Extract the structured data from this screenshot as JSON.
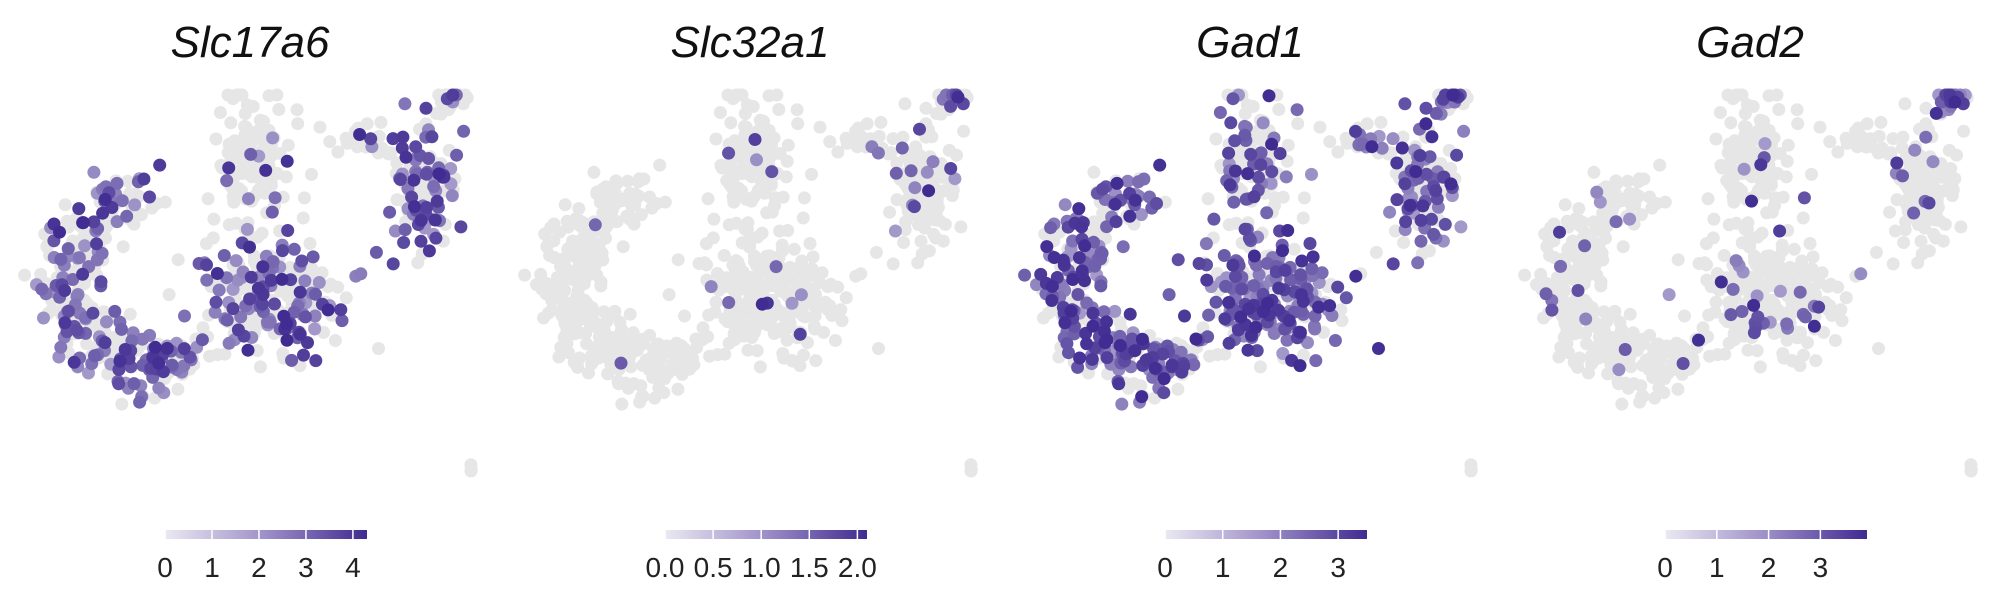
{
  "chart_data": [
    {
      "type": "scatter",
      "title": "Slc17a6",
      "colorbar": {
        "ticks": [
          "0",
          "1",
          "2",
          "3",
          "4"
        ],
        "range": [
          0,
          4.3
        ]
      },
      "colors": {
        "low": "#e6e6e6",
        "high": "#3f2b91"
      },
      "expression": "sparse moderate, mostly left and lower clusters"
    },
    {
      "type": "scatter",
      "title": "Slc32a1",
      "colorbar": {
        "ticks": [
          "0.0",
          "0.5",
          "1.0",
          "1.5",
          "2.0"
        ],
        "range": [
          0,
          2.1
        ]
      },
      "colors": {
        "low": "#e6e6e6",
        "high": "#3f2b91"
      },
      "expression": "very sparse"
    },
    {
      "type": "scatter",
      "title": "Gad1",
      "colorbar": {
        "ticks": [
          "0",
          "1",
          "2",
          "3"
        ],
        "range": [
          0,
          3.5
        ]
      },
      "colors": {
        "low": "#e6e6e6",
        "high": "#3f2b91"
      },
      "expression": "widespread"
    },
    {
      "type": "scatter",
      "title": "Gad2",
      "colorbar": {
        "ticks": [
          "0",
          "1",
          "2",
          "3"
        ],
        "range": [
          0,
          3.9
        ]
      },
      "colors": {
        "low": "#e6e6e6",
        "high": "#3f2b91"
      },
      "expression": "sparse, concentrated top-right"
    }
  ]
}
